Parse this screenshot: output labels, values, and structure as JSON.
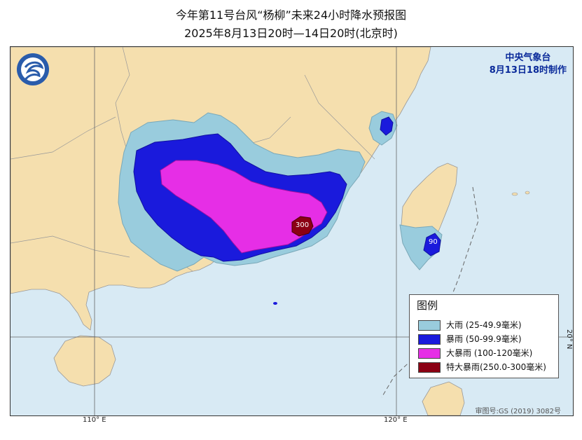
{
  "title": {
    "line1": "今年第11号台风“杨柳”未来24小时降水预报图",
    "line2": "2025年8月13日20时—14日20时(北京时)"
  },
  "issuer": {
    "name": "中央气象台",
    "made_at": "8月13日18时制作",
    "logo_icon": "cma-logo-icon"
  },
  "legend": {
    "title": "图例",
    "items": [
      {
        "label": "大雨 (25-49.9毫米)",
        "color": "#99ccdd"
      },
      {
        "label": "暴雨 (50-99.9毫米)",
        "color": "#1a1adc"
      },
      {
        "label": "大暴雨 (100-120毫米)",
        "color": "#e62ee6"
      },
      {
        "label": "特大暴雨(250.0-300毫米)",
        "color": "#8b0014"
      }
    ]
  },
  "annotations": {
    "peak_label": "300",
    "taiwan_label": "90"
  },
  "axes": {
    "lon_110": "110° E",
    "lon_120": "120° E",
    "lat_20": "20° N"
  },
  "credit": "审图号:GS (2019) 3082号",
  "colors": {
    "sea": "#d8eaf4",
    "land": "#f5dfae",
    "border": "#888888"
  }
}
